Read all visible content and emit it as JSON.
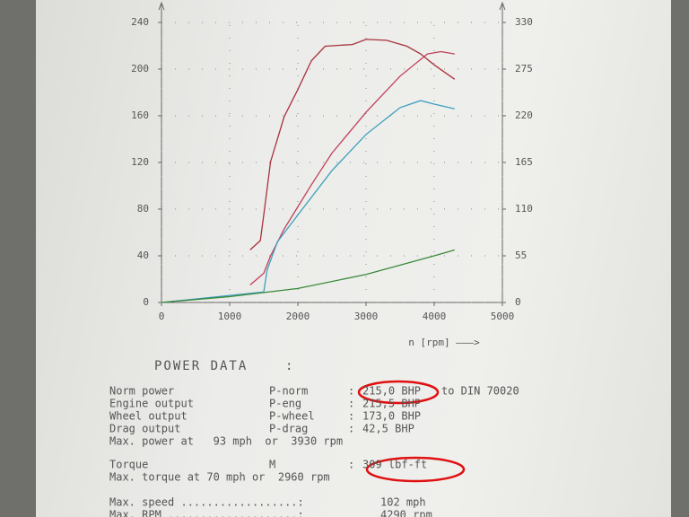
{
  "chart_data": {
    "type": "line",
    "xlabel": "n [rpm] ———>",
    "xlim": [
      0,
      5000
    ],
    "xticks": [
      0,
      1000,
      2000,
      3000,
      4000,
      5000
    ],
    "ylim": [
      0,
      240
    ],
    "yticks": [
      0,
      40,
      80,
      120,
      160,
      200,
      240
    ],
    "y2lim": [
      0,
      330
    ],
    "y2ticks": [
      0,
      55,
      110,
      165,
      220,
      275,
      330
    ],
    "grid": true,
    "series": [
      {
        "color": "#a8323c",
        "axis": "y2",
        "x": [
          1300,
          1450,
          1500,
          1600,
          1800,
          2000,
          2200,
          2400,
          2800,
          3000,
          3300,
          3600,
          3800,
          4000,
          4300
        ],
        "values": [
          62,
          73,
          103,
          166,
          219,
          251,
          285,
          302,
          304,
          310,
          309,
          302,
          293,
          280,
          263
        ]
      },
      {
        "color": "#c0405a",
        "x": [
          1300,
          1500,
          1600,
          1800,
          2000,
          2200,
          2500,
          3000,
          3500,
          3900,
          4100,
          4300
        ],
        "values": [
          15,
          25,
          40,
          63,
          82,
          101,
          128,
          163,
          194,
          213,
          215,
          213
        ]
      },
      {
        "color": "#3c9fbf",
        "x": [
          0,
          1500,
          1550,
          1700,
          2000,
          2500,
          3000,
          3500,
          3800,
          4000,
          4300
        ],
        "values": [
          0,
          9,
          28,
          52,
          75,
          113,
          144,
          167,
          173,
          170,
          166
        ]
      },
      {
        "color": "#3a8a3a",
        "x": [
          0,
          1000,
          2000,
          3000,
          4000,
          4300
        ],
        "values": [
          0,
          5,
          12,
          24,
          40,
          45
        ]
      }
    ]
  },
  "report": {
    "title": "POWER DATA    :",
    "lines": [
      {
        "color": "#b02030",
        "cells": [
          "Norm power",
          "P-norm",
          ":",
          "215,0 BHP",
          "to DIN 70020"
        ]
      },
      {
        "color": "#555555",
        "cells": [
          "Engine output",
          "P-eng",
          ":",
          "215,5 BHP"
        ]
      },
      {
        "color": "#2f9fbf",
        "cells": [
          "Wheel output",
          "P-wheel",
          ":",
          "173,0 BHP"
        ]
      },
      {
        "color": "#555555",
        "cells": [
          "Drag output",
          "P-drag",
          ":",
          "42,5 BHP"
        ]
      },
      {
        "color": "#555555",
        "cells": [
          "Max. power at   93 mph  or  3930 rpm"
        ]
      },
      {
        "color": "#b02030",
        "cells": [
          "Torque",
          "M",
          ":",
          "309 lbf-ft"
        ]
      },
      {
        "color": "#555555",
        "cells": [
          "Max. torque at 70 mph or  2960 rpm"
        ]
      },
      {
        "color": "#555555",
        "cells": [
          "Max. speed ..................:",
          "102 mph"
        ]
      },
      {
        "color": "#555555",
        "cells": [
          "Max. RPM ....................:",
          "4290 rpm"
        ]
      }
    ]
  }
}
